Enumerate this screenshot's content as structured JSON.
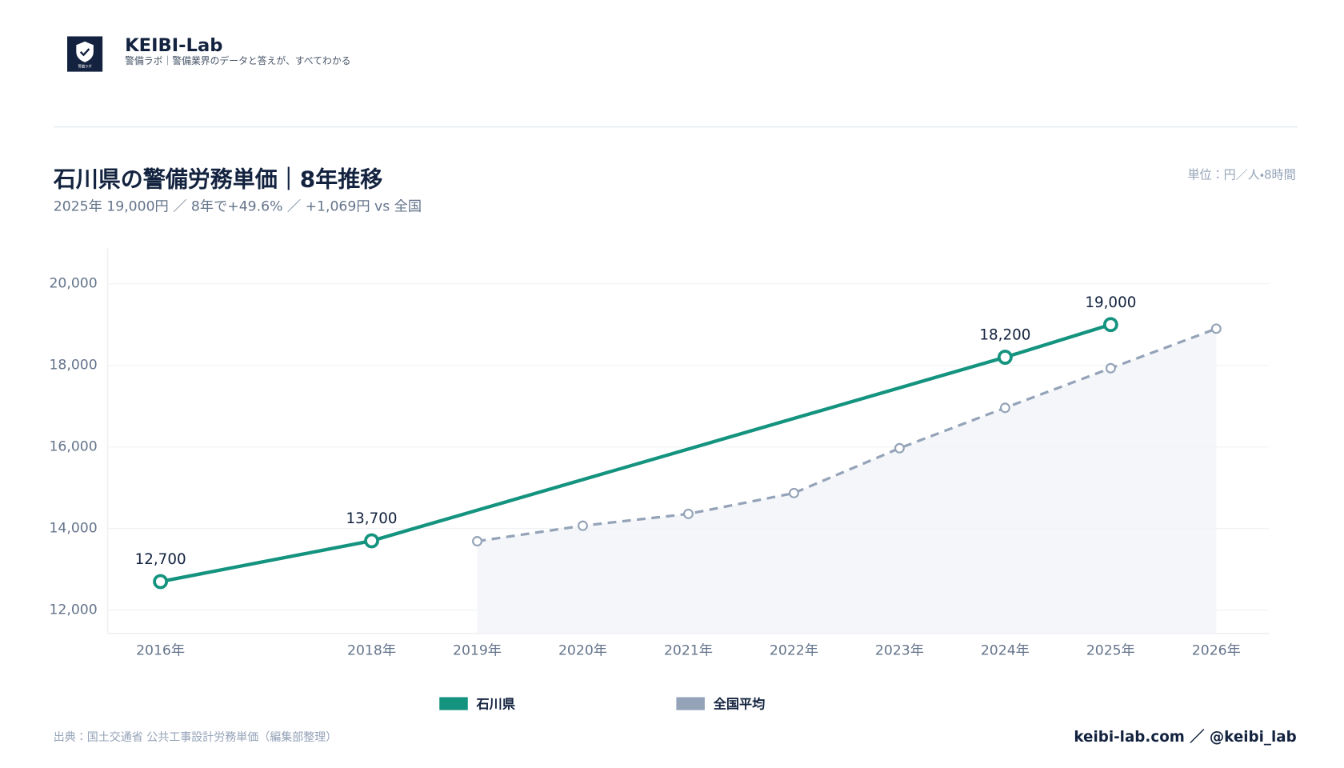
{
  "header": {
    "brand": "KEIBI-Lab",
    "tagline": "警備ラボ｜警備業界のデータと答えが、すべてわかる",
    "logo_text": "警備ラボ"
  },
  "chart_data": {
    "type": "line",
    "title": "石川県の警備労務単価｜8年推移",
    "subtitle": "2025年 19,000円 ／ 8年で+49.6% ／ +1,069円 vs 全国",
    "unit": "単位：円／人・8時間",
    "xlim": [
      2015.5,
      2026.5
    ],
    "xticks": [
      {
        "value": 2016,
        "label": "2016年"
      },
      {
        "value": 2018,
        "label": "2018年"
      },
      {
        "value": 2019,
        "label": "2019年"
      },
      {
        "value": 2020,
        "label": "2020年"
      },
      {
        "value": 2021,
        "label": "2021年"
      },
      {
        "value": 2022,
        "label": "2022年"
      },
      {
        "value": 2023,
        "label": "2023年"
      },
      {
        "value": 2024,
        "label": "2024年"
      },
      {
        "value": 2025,
        "label": "2025年"
      },
      {
        "value": 2026,
        "label": "2026年"
      }
    ],
    "ylim": [
      11430,
      20870
    ],
    "yticks": [
      {
        "value": 12000,
        "label": "12,000"
      },
      {
        "value": 14000,
        "label": "14,000"
      },
      {
        "value": 16000,
        "label": "16,000"
      },
      {
        "value": 18000,
        "label": "18,000"
      },
      {
        "value": 20000,
        "label": "20,000"
      }
    ],
    "grid": true,
    "legend": "bottom",
    "series": [
      {
        "name": "石川県",
        "color": "#14937f",
        "x": [
          2016,
          2018,
          2024,
          2025
        ],
        "values": [
          12700,
          13700,
          18200,
          19000
        ],
        "value_labels": [
          "12,700",
          "13,700",
          "18,200",
          "19,000"
        ]
      },
      {
        "name": "全国平均",
        "color": "#94a3b8",
        "dashed": true,
        "area": true,
        "x": [
          2019,
          2020,
          2021,
          2022,
          2023,
          2024,
          2025,
          2026
        ],
        "values": [
          13690,
          14070,
          14360,
          14870,
          15970,
          16960,
          17931,
          18900
        ]
      }
    ]
  },
  "footer": {
    "source": "出典：国土交通省 公共工事設計労務単価（編集部整理）",
    "handle": "keibi-lab.com ／ @keibi_lab"
  }
}
